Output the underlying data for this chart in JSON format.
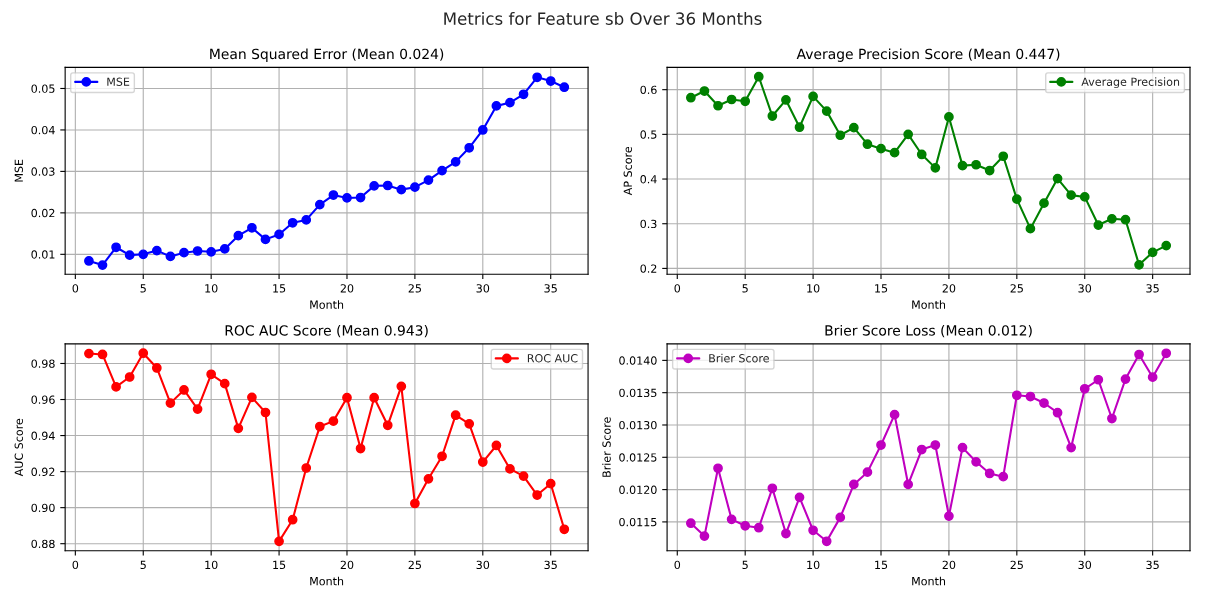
{
  "chart_data": [
    {
      "type": "line",
      "title": "Mean Squared Error (Mean 0.024)",
      "annotations": [
        "Metrics for Feature sb Over 36 Months"
      ],
      "xlabel": "Month",
      "ylabel": "MSE",
      "x": [
        1,
        2,
        3,
        4,
        5,
        6,
        7,
        8,
        9,
        10,
        11,
        12,
        13,
        14,
        15,
        16,
        17,
        18,
        19,
        20,
        21,
        22,
        23,
        24,
        25,
        26,
        27,
        28,
        29,
        30,
        31,
        32,
        33,
        34,
        35,
        36
      ],
      "series": [
        {
          "name": "MSE",
          "color": "#0000ff",
          "values": [
            0.0084,
            0.0074,
            0.0117,
            0.0098,
            0.01,
            0.0109,
            0.0095,
            0.0104,
            0.0108,
            0.0106,
            0.0113,
            0.0145,
            0.0164,
            0.0136,
            0.0148,
            0.0176,
            0.0183,
            0.022,
            0.0243,
            0.0236,
            0.0237,
            0.0265,
            0.0266,
            0.0256,
            0.0262,
            0.0279,
            0.0302,
            0.0323,
            0.0357,
            0.04,
            0.0458,
            0.0466,
            0.0486,
            0.0527,
            0.0518,
            0.0503
          ]
        }
      ],
      "xlim": [
        -0.75,
        37.75
      ],
      "xticks": [
        0,
        5,
        10,
        15,
        20,
        25,
        30,
        35
      ],
      "ylim": [
        0.0052,
        0.0551
      ],
      "yticks": [
        0.01,
        0.02,
        0.03,
        0.04,
        0.05
      ],
      "grid": true,
      "legend": "top left",
      "marker": "circle"
    },
    {
      "type": "line",
      "title": "Average Precision Score (Mean 0.447)",
      "xlabel": "Month",
      "ylabel": "AP Score",
      "x": [
        1,
        2,
        3,
        4,
        5,
        6,
        7,
        8,
        9,
        10,
        11,
        12,
        13,
        14,
        15,
        16,
        17,
        18,
        19,
        20,
        21,
        22,
        23,
        24,
        25,
        26,
        27,
        28,
        29,
        30,
        31,
        32,
        33,
        34,
        35,
        36
      ],
      "series": [
        {
          "name": "Average Precision",
          "color": "#008000",
          "values": [
            0.582,
            0.597,
            0.564,
            0.578,
            0.574,
            0.629,
            0.541,
            0.577,
            0.516,
            0.585,
            0.552,
            0.498,
            0.515,
            0.478,
            0.468,
            0.459,
            0.5,
            0.455,
            0.425,
            0.539,
            0.43,
            0.432,
            0.419,
            0.451,
            0.355,
            0.289,
            0.346,
            0.401,
            0.364,
            0.36,
            0.297,
            0.311,
            0.309,
            0.208,
            0.236,
            0.251
          ]
        }
      ],
      "xlim": [
        -0.75,
        37.75
      ],
      "xticks": [
        0,
        5,
        10,
        15,
        20,
        25,
        30,
        35
      ],
      "ylim": [
        0.187,
        0.65
      ],
      "yticks": [
        0.2,
        0.3,
        0.4,
        0.5,
        0.6
      ],
      "grid": true,
      "legend": "top right",
      "marker": "circle"
    },
    {
      "type": "line",
      "title": "ROC AUC Score (Mean 0.943)",
      "xlabel": "Month",
      "ylabel": "AUC Score",
      "x": [
        1,
        2,
        3,
        4,
        5,
        6,
        7,
        8,
        9,
        10,
        11,
        12,
        13,
        14,
        15,
        16,
        17,
        18,
        19,
        20,
        21,
        22,
        23,
        24,
        25,
        26,
        27,
        28,
        29,
        30,
        31,
        32,
        33,
        34,
        35,
        36
      ],
      "series": [
        {
          "name": "ROC AUC",
          "color": "#ff0000",
          "values": [
            0.9855,
            0.985,
            0.967,
            0.9725,
            0.9857,
            0.9775,
            0.958,
            0.9653,
            0.9547,
            0.974,
            0.9688,
            0.944,
            0.9612,
            0.9528,
            0.8813,
            0.8933,
            0.922,
            0.945,
            0.948,
            0.961,
            0.9328,
            0.961,
            0.9457,
            0.9673,
            0.9023,
            0.916,
            0.9285,
            0.9513,
            0.9465,
            0.9253,
            0.9345,
            0.9215,
            0.9175,
            0.907,
            0.9133,
            0.888
          ]
        }
      ],
      "xlim": [
        -0.75,
        37.75
      ],
      "xticks": [
        0,
        5,
        10,
        15,
        20,
        25,
        30,
        35
      ],
      "ylim": [
        0.8761,
        0.9909
      ],
      "yticks": [
        0.88,
        {
          "value": 0.9,
          "label": "0.90"
        },
        0.92,
        0.94,
        0.96,
        0.98
      ],
      "grid": true,
      "legend": "top right",
      "marker": "circle"
    },
    {
      "type": "line",
      "title": "Brier Score Loss (Mean 0.012)",
      "xlabel": "Month",
      "ylabel": "Brier Score",
      "x": [
        1,
        2,
        3,
        4,
        5,
        6,
        7,
        8,
        9,
        10,
        11,
        12,
        13,
        14,
        15,
        16,
        17,
        18,
        19,
        20,
        21,
        22,
        23,
        24,
        25,
        26,
        27,
        28,
        29,
        30,
        31,
        32,
        33,
        34,
        35,
        36
      ],
      "series": [
        {
          "name": "Brier Score",
          "color": "#bf00bf",
          "values": [
            0.01148,
            0.01128,
            0.01233,
            0.01154,
            0.01144,
            0.01141,
            0.01202,
            0.01132,
            0.01188,
            0.01137,
            0.0112,
            0.01157,
            0.01208,
            0.01227,
            0.01269,
            0.01316,
            0.01208,
            0.01262,
            0.01269,
            0.01159,
            0.01265,
            0.01243,
            0.01225,
            0.0122,
            0.01346,
            0.01344,
            0.01334,
            0.01319,
            0.01265,
            0.01356,
            0.0137,
            0.0131,
            0.01371,
            0.01409,
            0.01374,
            0.01411
          ]
        }
      ],
      "xlim": [
        -0.75,
        37.75
      ],
      "xticks": [
        0,
        5,
        10,
        15,
        20,
        25,
        30,
        35
      ],
      "ylim": [
        0.011054,
        0.014256
      ],
      "yticks": [
        0.0115,
        {
          "value": 0.012,
          "label": "0.0120"
        },
        0.0125,
        {
          "value": 0.013,
          "label": "0.0130"
        },
        0.0135,
        {
          "value": 0.014,
          "label": "0.0140"
        }
      ],
      "grid": true,
      "legend": "top left",
      "marker": "circle"
    }
  ]
}
